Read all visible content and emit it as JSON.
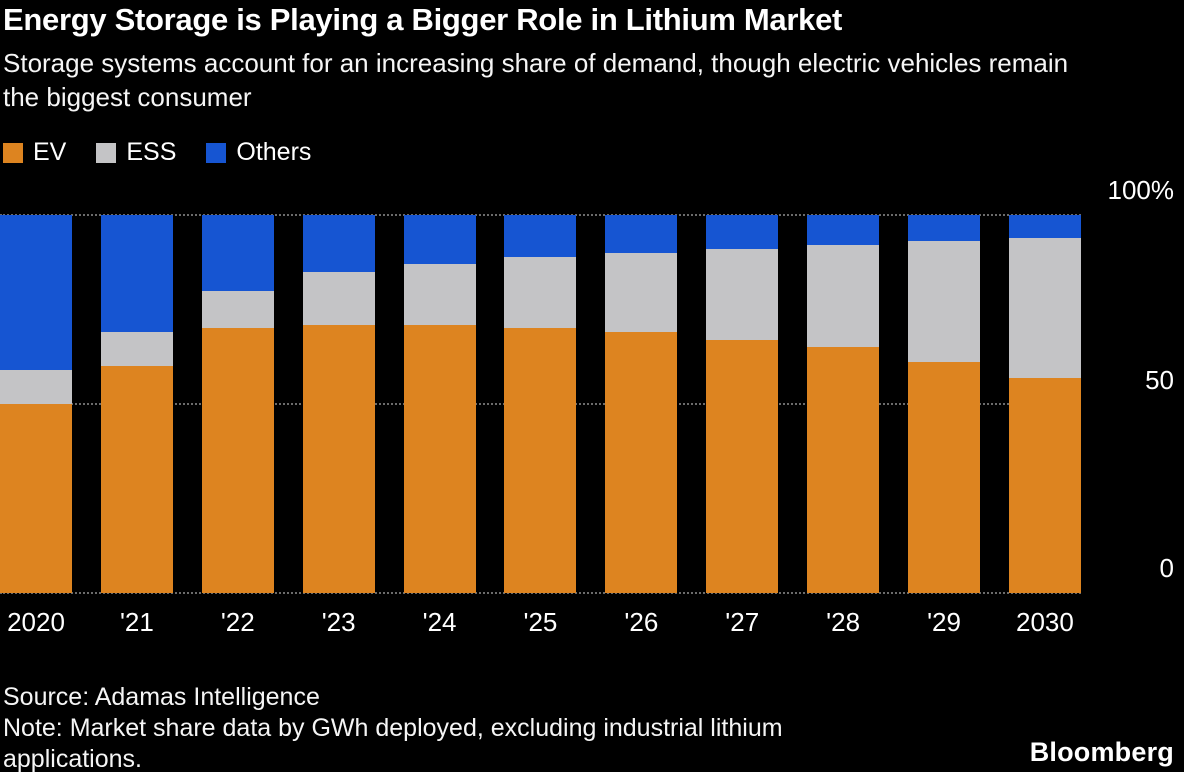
{
  "header": {
    "title": "Energy Storage is Playing a Bigger Role in Lithium Market",
    "subtitle": "Storage systems account for an increasing share of demand, though electric vehicles remain the biggest consumer"
  },
  "legend": {
    "items": [
      {
        "label": "EV",
        "color": "#DD8420"
      },
      {
        "label": "ESS",
        "color": "#C4C4C6"
      },
      {
        "label": "Others",
        "color": "#1655D2"
      }
    ]
  },
  "chart_data": {
    "type": "bar",
    "stacked": true,
    "unit": "percent share",
    "title": "Energy Storage is Playing a Bigger Role in Lithium Market",
    "categories": [
      "2020",
      "'21",
      "'22",
      "'23",
      "'24",
      "'25",
      "'26",
      "'27",
      "'28",
      "'29",
      "2030"
    ],
    "series": [
      {
        "name": "EV",
        "color": "#DD8420",
        "values": [
          50,
          60,
          70,
          71,
          71,
          70,
          69,
          67,
          65,
          61,
          57
        ]
      },
      {
        "name": "ESS",
        "color": "#C4C4C6",
        "values": [
          9,
          9,
          10,
          14,
          16,
          19,
          21,
          24,
          27,
          32,
          37
        ]
      },
      {
        "name": "Others",
        "color": "#1655D2",
        "values": [
          41,
          31,
          20,
          15,
          13,
          11,
          10,
          9,
          8,
          7,
          6
        ]
      }
    ],
    "y_ticks": [
      "100%",
      "50",
      "0"
    ],
    "ylim": [
      0,
      100
    ],
    "grid": "dotted horizontal at 0, 50, 100",
    "legend_position": "top-left",
    "background": "#000000"
  },
  "footer": {
    "source": "Source: Adamas Intelligence",
    "note": "Note: Market share data by GWh deployed, excluding industrial lithium applications.",
    "logo": "Bloomberg"
  }
}
